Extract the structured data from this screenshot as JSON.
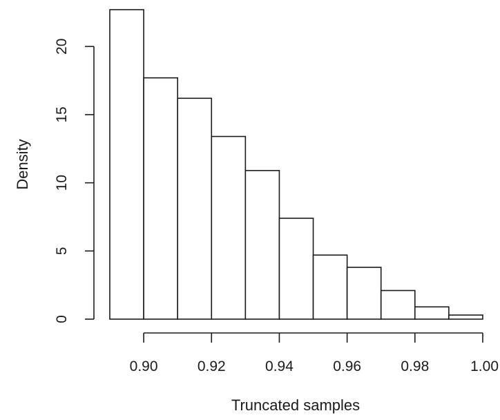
{
  "chart_data": {
    "type": "bar",
    "title": "",
    "xlabel": "Truncated samples",
    "ylabel": "Density",
    "bins": [
      [
        0.89,
        0.9
      ],
      [
        0.9,
        0.91
      ],
      [
        0.91,
        0.92
      ],
      [
        0.92,
        0.93
      ],
      [
        0.93,
        0.94
      ],
      [
        0.94,
        0.95
      ],
      [
        0.95,
        0.96
      ],
      [
        0.96,
        0.97
      ],
      [
        0.97,
        0.98
      ],
      [
        0.98,
        0.99
      ],
      [
        0.99,
        1.0
      ]
    ],
    "values": [
      22.7,
      17.7,
      16.2,
      13.4,
      10.9,
      7.4,
      4.7,
      3.8,
      2.1,
      0.9,
      0.3
    ],
    "xlim": [
      0.89,
      1.0
    ],
    "ylim": [
      0,
      22.7
    ],
    "x_ticks": [
      0.9,
      0.92,
      0.94,
      0.96,
      0.98,
      1.0
    ],
    "x_tick_labels": [
      "0.90",
      "0.92",
      "0.94",
      "0.96",
      "0.98",
      "1.00"
    ],
    "y_ticks": [
      0,
      5,
      10,
      15,
      20
    ],
    "y_tick_labels": [
      "0",
      "5",
      "10",
      "15",
      "20"
    ],
    "grid": false,
    "legend": "none",
    "colors": {
      "bar_fill": "#ffffff",
      "stroke": "#1a1a1a"
    }
  }
}
